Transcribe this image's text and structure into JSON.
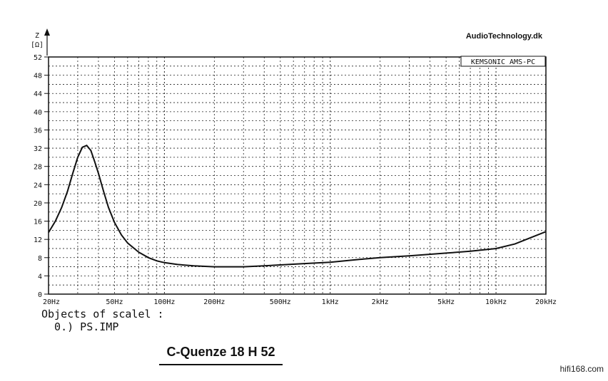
{
  "brand_text": "AudioTechnology.dk",
  "instrument_label": "KEMSONIC AMS-PC",
  "y_axis_unit_top": "Z",
  "y_axis_unit_bottom": "[Ω]",
  "legend": {
    "line1": "Objects of scalel :",
    "line2": "  0.) PS.IMP"
  },
  "title": "C-Quenze 18 H 52",
  "watermark": "hifi168.com",
  "chart_data": {
    "type": "line",
    "x_scale": "log",
    "xlim": [
      20,
      20000
    ],
    "ylim": [
      0,
      52
    ],
    "y_ticks": [
      0,
      4,
      8,
      12,
      16,
      20,
      24,
      28,
      32,
      36,
      40,
      44,
      48,
      52
    ],
    "y_tick_labels": [
      "0",
      "4",
      "8",
      "12",
      "16",
      "20",
      "24",
      "28",
      "32",
      "36",
      "40",
      "44",
      "48",
      "52"
    ],
    "x_ticks": [
      20,
      50,
      100,
      200,
      500,
      1000,
      2000,
      5000,
      10000,
      20000
    ],
    "x_tick_labels": [
      "20Hz",
      "50Hz",
      "100Hz",
      "200Hz",
      "500Hz",
      "1kHz",
      "2kHz",
      "5kHz",
      "10kHz",
      "20kHz"
    ],
    "grid": true,
    "series": [
      {
        "x": [
          20,
          22,
          24,
          26,
          28,
          30,
          32,
          34,
          36,
          38,
          40,
          43,
          46,
          50,
          55,
          60,
          70,
          80,
          90,
          100,
          120,
          150,
          200,
          250,
          300,
          400,
          500,
          700,
          1000,
          1500,
          2000,
          3000,
          5000,
          7000,
          10000,
          13000,
          16000,
          20000
        ],
        "y": [
          13.5,
          16,
          19,
          22.5,
          26.5,
          30,
          32.2,
          32.6,
          31.5,
          29,
          26.5,
          22.5,
          19,
          15.7,
          13,
          11.2,
          9.2,
          8,
          7.3,
          6.9,
          6.5,
          6.2,
          6.0,
          6.0,
          6.0,
          6.2,
          6.4,
          6.7,
          7.0,
          7.6,
          8.0,
          8.4,
          9.0,
          9.4,
          10.0,
          11.0,
          12.3,
          13.7
        ]
      }
    ]
  }
}
